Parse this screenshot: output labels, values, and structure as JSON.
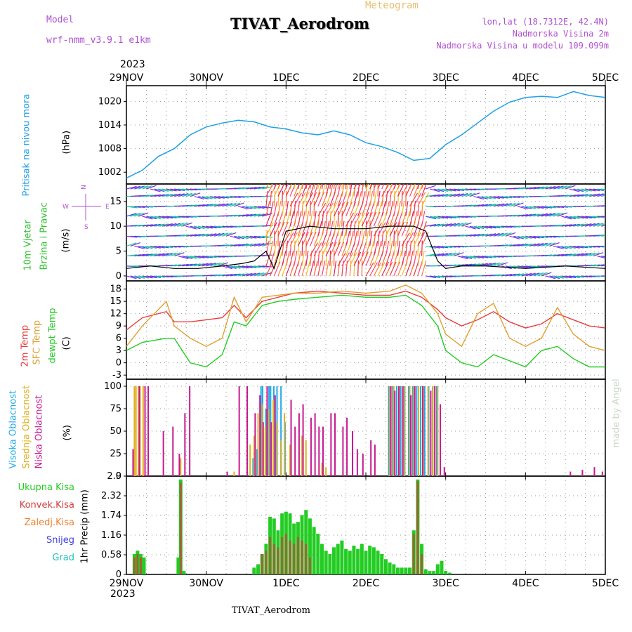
{
  "header": {
    "model_label": "Model",
    "model_name": "wrf-nmm_v3.9.1 e1km",
    "title": "TIVAT_Aerodrom",
    "subtitle": "Meteogram",
    "lonlat": "lon,lat (18.7312E, 42.4N)",
    "height_2m": "Nadmorska Visina 2m",
    "model_height": "Nadmorska Visina u modelu 109.099m",
    "year_top": "2023",
    "year_bottom": "2023",
    "footer": "TIVAT_Aerodrom",
    "credit": "made by Angel"
  },
  "colors": {
    "pressure": "#1ea0e6",
    "wind_label": "#2ec22e",
    "wind_speed": "#000000",
    "temp2m": "#e83c3c",
    "sfc_temp": "#e0a030",
    "dewpt": "#22cc22",
    "cloud_high": "#22a8e8",
    "cloud_mid": "#e0b020",
    "cloud_low": "#c81890",
    "precip_total": "#22cc22",
    "precip_conv": "#d23c3c",
    "precip_frozen": "#f08030",
    "snow": "#4040e0",
    "graupel": "#20c0c0",
    "model_text": "#b050d0",
    "meteogram": "#e8c070"
  },
  "axis": {
    "x_ticks": [
      "29NOV",
      "30NOV",
      "1DEC",
      "2DEC",
      "3DEC",
      "4DEC",
      "5DEC"
    ]
  },
  "panels": {
    "pressure": {
      "label": "Pritisak na nivou mora",
      "unit": "(hPa)",
      "ticks": [
        "1002",
        "1008",
        "1014",
        "1020"
      ]
    },
    "wind": {
      "label1": "10m Vjetar",
      "label2": "Brzina i Pravac",
      "unit": "(m/s)",
      "ticks": [
        "0",
        "5",
        "10",
        "15"
      ],
      "compass": "N S W E"
    },
    "temp": {
      "label1": "2m Temp",
      "label2": "SFC Temp",
      "label3": "dewpt Temp",
      "unit": "(C)",
      "ticks": [
        "-3",
        "0",
        "3",
        "6",
        "9",
        "12",
        "15",
        "18"
      ]
    },
    "cloud": {
      "label1": "Visoka Oblacnost",
      "label2": "Srednja Oblacnost",
      "label3": "Niska Oblacnost",
      "unit": "(%)",
      "ticks": [
        "0",
        "25",
        "50",
        "75",
        "100"
      ]
    },
    "precip": {
      "label1": "Ukupna Kisa",
      "label2": "Konvek.Kisa",
      "label3": "Zaledj.Kisa",
      "label4": "Snijeg",
      "label5": "Grad",
      "unit": "1hr Precip (mm)",
      "ticks": [
        "0",
        "0.58",
        "1.16",
        "1.74",
        "2.32",
        "2.9"
      ]
    }
  },
  "chart_data": [
    {
      "type": "line",
      "title": "Pritisak na nivou mora",
      "ylabel": "(hPa)",
      "ylim": [
        999,
        1024
      ],
      "x_days": [
        0,
        0.2,
        0.4,
        0.6,
        0.8,
        1.0,
        1.2,
        1.4,
        1.6,
        1.8,
        2.0,
        2.2,
        2.4,
        2.6,
        2.8,
        3.0,
        3.2,
        3.4,
        3.6,
        3.8,
        4.0,
        4.2,
        4.4,
        4.6,
        4.8,
        5.0,
        5.2,
        5.4,
        5.6,
        5.8,
        6.0
      ],
      "series": [
        {
          "name": "Pritisak",
          "values": [
            1000.5,
            1002.5,
            1006,
            1008,
            1011.5,
            1013.5,
            1014.5,
            1015.2,
            1014.8,
            1013.5,
            1013,
            1012,
            1011.5,
            1012.5,
            1011.5,
            1009.5,
            1008.5,
            1007,
            1005,
            1005.5,
            1009,
            1011.5,
            1014.5,
            1017.5,
            1019.8,
            1021,
            1021.3,
            1021,
            1022.5,
            1021.5,
            1021
          ]
        }
      ]
    },
    {
      "type": "line",
      "title": "10m Vjetar Brzina i Pravac",
      "ylabel": "(m/s)",
      "ylim": [
        -1,
        18.5
      ],
      "x_days": [
        0,
        0.3,
        0.6,
        0.9,
        1.2,
        1.45,
        1.6,
        1.75,
        1.85,
        2.0,
        2.3,
        2.6,
        3.0,
        3.3,
        3.6,
        3.75,
        3.9,
        4.0,
        4.2,
        4.5,
        5.0,
        5.5,
        6.0
      ],
      "series": [
        {
          "name": "Brzina",
          "values": [
            1.5,
            2,
            1.5,
            1.5,
            2,
            2.5,
            3,
            5,
            1.5,
            9,
            10,
            9.5,
            9.5,
            10,
            10,
            9,
            3,
            1.5,
            2,
            2,
            1.5,
            2,
            1.5
          ]
        }
      ]
    },
    {
      "type": "line",
      "title": "2m Temp / SFC Temp / dewpt Temp",
      "ylabel": "(C)",
      "ylim": [
        -4,
        20
      ],
      "x_days": [
        0,
        0.2,
        0.5,
        0.6,
        0.8,
        1.0,
        1.2,
        1.35,
        1.5,
        1.7,
        1.9,
        2.1,
        2.4,
        2.7,
        3.0,
        3.3,
        3.5,
        3.7,
        3.9,
        4.0,
        4.2,
        4.4,
        4.6,
        4.8,
        5.0,
        5.2,
        5.4,
        5.6,
        5.8,
        6.0
      ],
      "series": [
        {
          "name": "2m Temp",
          "values": [
            8,
            11,
            12.5,
            10,
            10,
            10.5,
            11,
            14,
            11,
            15,
            16,
            17,
            17.5,
            17,
            16.5,
            16.5,
            17.5,
            16,
            13,
            11,
            9,
            10.5,
            12.5,
            10,
            8.5,
            9.5,
            12,
            10.5,
            9,
            8.5
          ]
        },
        {
          "name": "SFC Temp",
          "values": [
            4,
            9,
            15,
            9,
            6,
            4,
            6,
            16,
            10,
            16,
            16.5,
            17,
            17,
            17.5,
            17,
            17.5,
            19,
            17,
            12,
            7,
            4,
            12,
            14.5,
            6,
            4,
            6,
            13.5,
            7,
            4,
            3
          ]
        },
        {
          "name": "dewpt Temp",
          "values": [
            3,
            5,
            6,
            6,
            0,
            -1,
            2,
            10,
            9,
            14,
            15,
            15.5,
            16,
            16.5,
            16,
            16,
            16.5,
            14,
            9,
            3,
            0,
            -1,
            2,
            0.5,
            -1,
            3,
            4,
            1,
            -1,
            -1
          ]
        }
      ]
    },
    {
      "type": "bar",
      "title": "Visoka / Srednja / Niska Oblacnost",
      "ylabel": "(%)",
      "ylim": [
        0,
        100
      ],
      "series": [
        {
          "name": "Visoka Oblacnost",
          "x_days": [
            1.53,
            1.6,
            1.65,
            1.7,
            1.72,
            1.76,
            1.8,
            1.82,
            1.86,
            1.9,
            1.95,
            2.0,
            3.3,
            3.35,
            3.4,
            3.45,
            3.5,
            3.55,
            3.6,
            3.65,
            3.7,
            3.75,
            3.8,
            3.85,
            3.9,
            4.0
          ],
          "values": [
            5,
            20,
            30,
            100,
            100,
            75,
            100,
            100,
            100,
            100,
            100,
            60,
            100,
            100,
            100,
            100,
            100,
            100,
            100,
            100,
            100,
            100,
            100,
            100,
            100,
            2
          ]
        },
        {
          "name": "Srednja Oblacnost",
          "x_days": [
            0.1,
            0.12,
            0.15,
            0.17,
            0.21,
            0.68,
            1.35,
            1.55,
            1.6,
            1.65,
            1.7,
            1.74,
            1.78,
            1.84,
            1.88,
            1.94,
            1.98,
            2.05,
            2.2,
            2.25,
            2.45,
            2.5,
            3.3,
            3.35,
            3.42,
            3.48,
            3.55,
            3.6,
            3.66,
            3.72,
            3.78,
            3.84,
            3.9
          ],
          "values": [
            100,
            100,
            100,
            100,
            100,
            20,
            5,
            35,
            45,
            70,
            80,
            55,
            75,
            85,
            60,
            40,
            70,
            35,
            45,
            40,
            15,
            10,
            100,
            100,
            100,
            100,
            100,
            100,
            100,
            100,
            100,
            100,
            100
          ]
        },
        {
          "name": "Niska Oblacnost",
          "x_days": [
            0.07,
            0.15,
            0.22,
            0.26,
            0.45,
            0.57,
            0.65,
            0.72,
            0.78,
            1.25,
            1.4,
            1.5,
            1.6,
            1.66,
            1.7,
            1.75,
            1.8,
            1.85,
            2.05,
            2.1,
            2.15,
            2.2,
            2.3,
            2.35,
            2.4,
            2.45,
            2.55,
            2.6,
            2.7,
            2.75,
            2.82,
            2.88,
            2.95,
            3.05,
            3.1,
            3.3,
            3.35,
            3.4,
            3.45,
            3.55,
            3.6,
            3.7,
            3.8,
            3.85,
            3.92,
            3.97,
            5.55,
            5.7,
            5.85,
            5.95
          ],
          "values": [
            30,
            100,
            100,
            100,
            50,
            55,
            25,
            70,
            100,
            5,
            100,
            100,
            70,
            90,
            60,
            100,
            60,
            90,
            85,
            55,
            70,
            80,
            65,
            70,
            55,
            55,
            70,
            70,
            55,
            65,
            50,
            30,
            25,
            40,
            35,
            100,
            95,
            100,
            100,
            90,
            100,
            100,
            95,
            100,
            80,
            10,
            5,
            7,
            10,
            5
          ]
        }
      ]
    },
    {
      "type": "bar",
      "title": "1hr Precip",
      "ylabel": "1hr Precip (mm)",
      "ylim": [
        0,
        2.9
      ],
      "series": [
        {
          "name": "Ukupna Kisa",
          "x_days": [
            0.1,
            0.14,
            0.18,
            0.22,
            0.65,
            0.68,
            0.72,
            1.6,
            1.65,
            1.7,
            1.75,
            1.8,
            1.85,
            1.9,
            1.95,
            2.0,
            2.05,
            2.1,
            2.15,
            2.2,
            2.25,
            2.3,
            2.35,
            2.4,
            2.45,
            2.5,
            2.55,
            2.6,
            2.65,
            2.7,
            2.75,
            2.8,
            2.85,
            2.9,
            2.95,
            3.0,
            3.05,
            3.1,
            3.15,
            3.2,
            3.25,
            3.3,
            3.35,
            3.4,
            3.45,
            3.5,
            3.55,
            3.6,
            3.65,
            3.7,
            3.75,
            3.8,
            3.85,
            3.9,
            3.95,
            4.0,
            4.05
          ],
          "values": [
            0.6,
            0.7,
            0.6,
            0.5,
            0.5,
            2.8,
            0.1,
            0.2,
            0.3,
            0.6,
            0.9,
            1.7,
            1.65,
            1.3,
            1.8,
            1.85,
            1.8,
            1.5,
            1.55,
            1.75,
            1.9,
            1.65,
            1.4,
            1.2,
            0.9,
            0.7,
            0.6,
            0.8,
            0.9,
            1.0,
            0.75,
            0.7,
            0.85,
            0.75,
            0.9,
            0.7,
            0.85,
            0.8,
            0.7,
            0.6,
            0.45,
            0.35,
            0.3,
            0.2,
            0.2,
            0.2,
            0.2,
            1.3,
            2.8,
            0.9,
            0.15,
            0.1,
            0.1,
            0.3,
            0.4,
            0.1,
            0.05
          ]
        },
        {
          "name": "Konvek.Kisa",
          "x_days": [
            0.1,
            0.14,
            0.18,
            0.68,
            1.7,
            1.75,
            1.8,
            1.85,
            1.9,
            1.95,
            2.0,
            2.05,
            2.1,
            2.15,
            2.2,
            2.25,
            2.3,
            3.6,
            3.65,
            3.7
          ],
          "values": [
            0.5,
            0.6,
            0.5,
            2.7,
            0.6,
            0.7,
            1.1,
            0.9,
            0.8,
            1.1,
            1.2,
            1.0,
            0.9,
            1.1,
            1.0,
            0.9,
            0.5,
            1.2,
            2.75,
            0.6
          ]
        }
      ]
    }
  ]
}
